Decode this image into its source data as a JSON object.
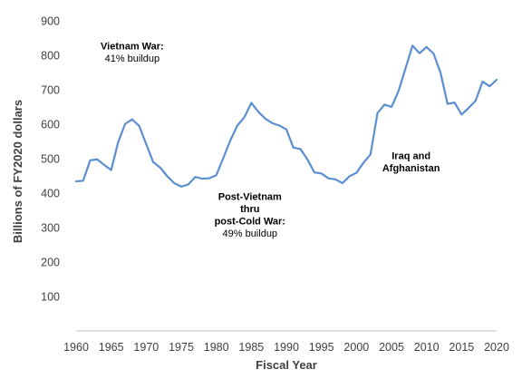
{
  "chart_data": {
    "type": "line",
    "xlabel": "Fiscal Year",
    "ylabel": "Billions of FY2020 dollars",
    "xlim": [
      1960,
      2020
    ],
    "ylim": [
      100,
      900
    ],
    "x_ticks": [
      1960,
      1965,
      1970,
      1975,
      1980,
      1985,
      1990,
      1995,
      2000,
      2005,
      2010,
      2015,
      2020
    ],
    "y_ticks": [
      100,
      200,
      300,
      400,
      500,
      600,
      700,
      800,
      900
    ],
    "grid": false,
    "line_color": "#5B8FD0",
    "series": [
      {
        "x": [
          1960,
          1961,
          1962,
          1963,
          1964,
          1965,
          1966,
          1967,
          1968,
          1969,
          1970,
          1971,
          1972,
          1973,
          1974,
          1975,
          1976,
          1977,
          1978,
          1979,
          1980,
          1981,
          1982,
          1983,
          1984,
          1985,
          1986,
          1987,
          1988,
          1989,
          1990,
          1991,
          1992,
          1993,
          1994,
          1995,
          1996,
          1997,
          1998,
          1999,
          2000,
          2001,
          2002,
          2003,
          2004,
          2005,
          2006,
          2007,
          2008,
          2009,
          2010,
          2011,
          2012,
          2013,
          2014,
          2015,
          2016,
          2017,
          2018,
          2019,
          2020
        ],
        "values": [
          434,
          436,
          495,
          498,
          482,
          467,
          548,
          601,
          614,
          595,
          542,
          490,
          474,
          449,
          429,
          419,
          425,
          447,
          442,
          443,
          452,
          502,
          553,
          596,
          620,
          662,
          636,
          616,
          603,
          596,
          585,
          532,
          528,
          498,
          460,
          457,
          443,
          440,
          429,
          449,
          459,
          488,
          512,
          632,
          657,
          650,
          696,
          762,
          828,
          806,
          824,
          805,
          749,
          659,
          663,
          628,
          647,
          668,
          724,
          710,
          729
        ]
      }
    ],
    "annotations": [
      {
        "lines": [
          {
            "text": "Vietnam War:",
            "bold": true
          },
          {
            "text": "41% buildup",
            "bold": false
          }
        ],
        "anchor": {
          "x": 1968,
          "y": 810
        }
      },
      {
        "lines": [
          {
            "text": "Post-Vietnam",
            "bold": true
          },
          {
            "text": "thru",
            "bold": true
          },
          {
            "text": "post-Cold War:",
            "bold": true
          },
          {
            "text": "49% buildup",
            "bold": false
          }
        ],
        "anchor": {
          "x": 1984.8,
          "y": 338
        }
      },
      {
        "lines": [
          {
            "text": "Iraq and",
            "bold": true
          },
          {
            "text": "Afghanistan",
            "bold": true
          }
        ],
        "anchor": {
          "x": 2007.8,
          "y": 492
        }
      }
    ]
  }
}
